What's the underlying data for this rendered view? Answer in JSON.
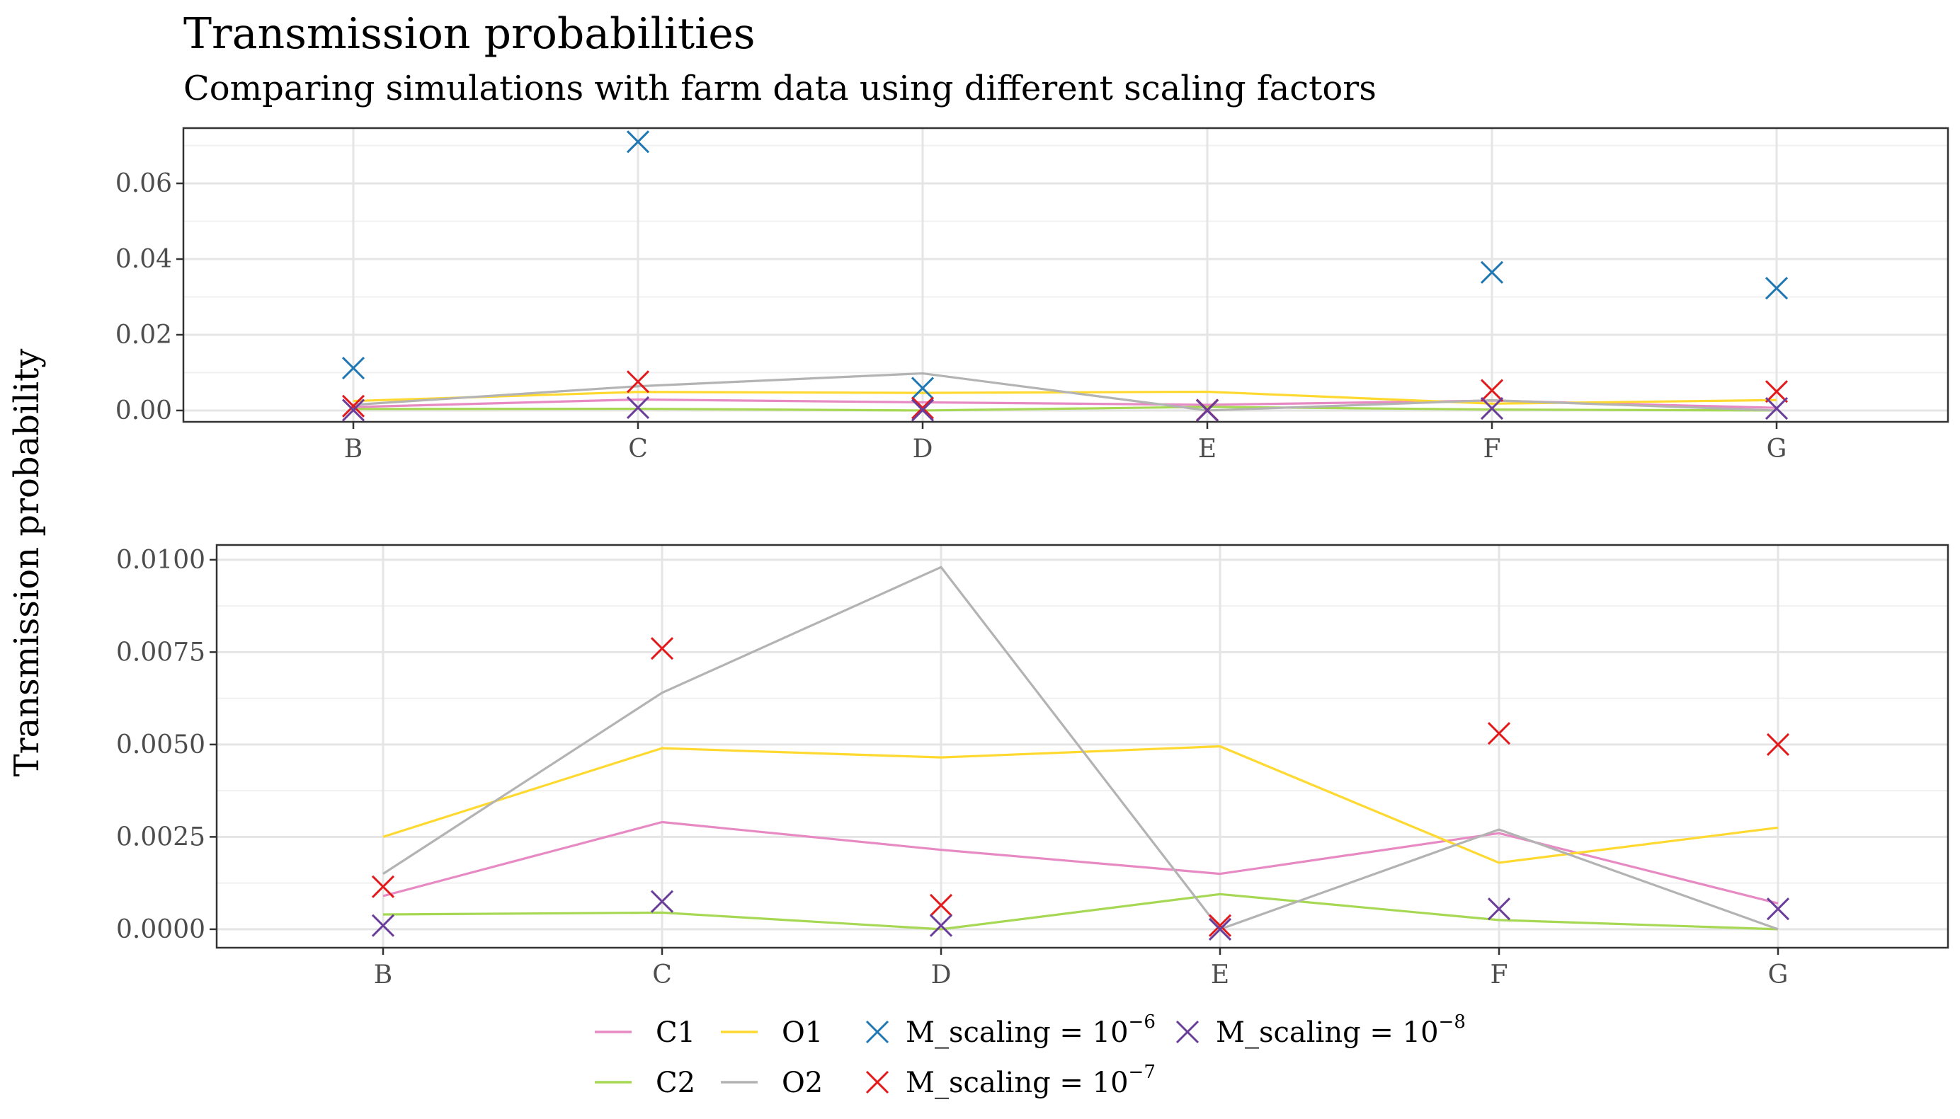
{
  "chart_data": {
    "type": "line",
    "title": "Transmission probabilities",
    "subtitle": "Comparing simulations with farm data using different scaling factors",
    "ylabel": "Transmission probability",
    "categories": [
      "B",
      "C",
      "D",
      "E",
      "F",
      "G"
    ],
    "line_series": [
      {
        "name": "C1",
        "color": "#e78ac3",
        "values": [
          0.0009,
          0.0029,
          0.00215,
          0.0015,
          0.0026,
          0.0007
        ]
      },
      {
        "name": "C2",
        "color": "#a6d854",
        "values": [
          0.0004,
          0.00045,
          0.0,
          0.00095,
          0.00025,
          0.0
        ]
      },
      {
        "name": "O1",
        "color": "#ffd92f",
        "values": [
          0.0025,
          0.0049,
          0.00465,
          0.00495,
          0.0018,
          0.00275
        ]
      },
      {
        "name": "O2",
        "color": "#b3b3b3",
        "values": [
          0.0015,
          0.0064,
          0.0098,
          0.0,
          0.0027,
          0.0
        ]
      }
    ],
    "point_series": [
      {
        "name": "M_scaling = 10",
        "exponent": "−6",
        "color": "#1f78b4",
        "values": [
          0.0112,
          0.071,
          0.0059,
          0.0001,
          0.0365,
          0.0323
        ]
      },
      {
        "name": "M_scaling = 10",
        "exponent": "−7",
        "color": "#e31a1c",
        "values": [
          0.00115,
          0.0076,
          0.00065,
          0.0001,
          0.0053,
          0.005
        ]
      },
      {
        "name": "M_scaling = 10",
        "exponent": "−8",
        "color": "#6a3d9a",
        "values": [
          0.0001,
          0.00075,
          0.0001,
          0.0,
          0.00055,
          0.00055
        ]
      }
    ],
    "panels": [
      {
        "series": "all",
        "ylim": [
          -0.003,
          0.0746
        ],
        "yticks": [
          0.0,
          0.02,
          0.04,
          0.06
        ],
        "ytick_labels": [
          "0.00",
          "0.02",
          "0.04",
          "0.06"
        ]
      },
      {
        "series": "excluding M_scaling = 10^-6",
        "ylim": [
          -0.0005,
          0.0104
        ],
        "yticks": [
          0.0,
          0.0025,
          0.005,
          0.0075,
          0.01
        ],
        "ytick_labels": [
          "0.0000",
          "0.0025",
          "0.0050",
          "0.0075",
          "0.0100"
        ]
      }
    ],
    "grid": true,
    "legend_position": "bottom"
  }
}
